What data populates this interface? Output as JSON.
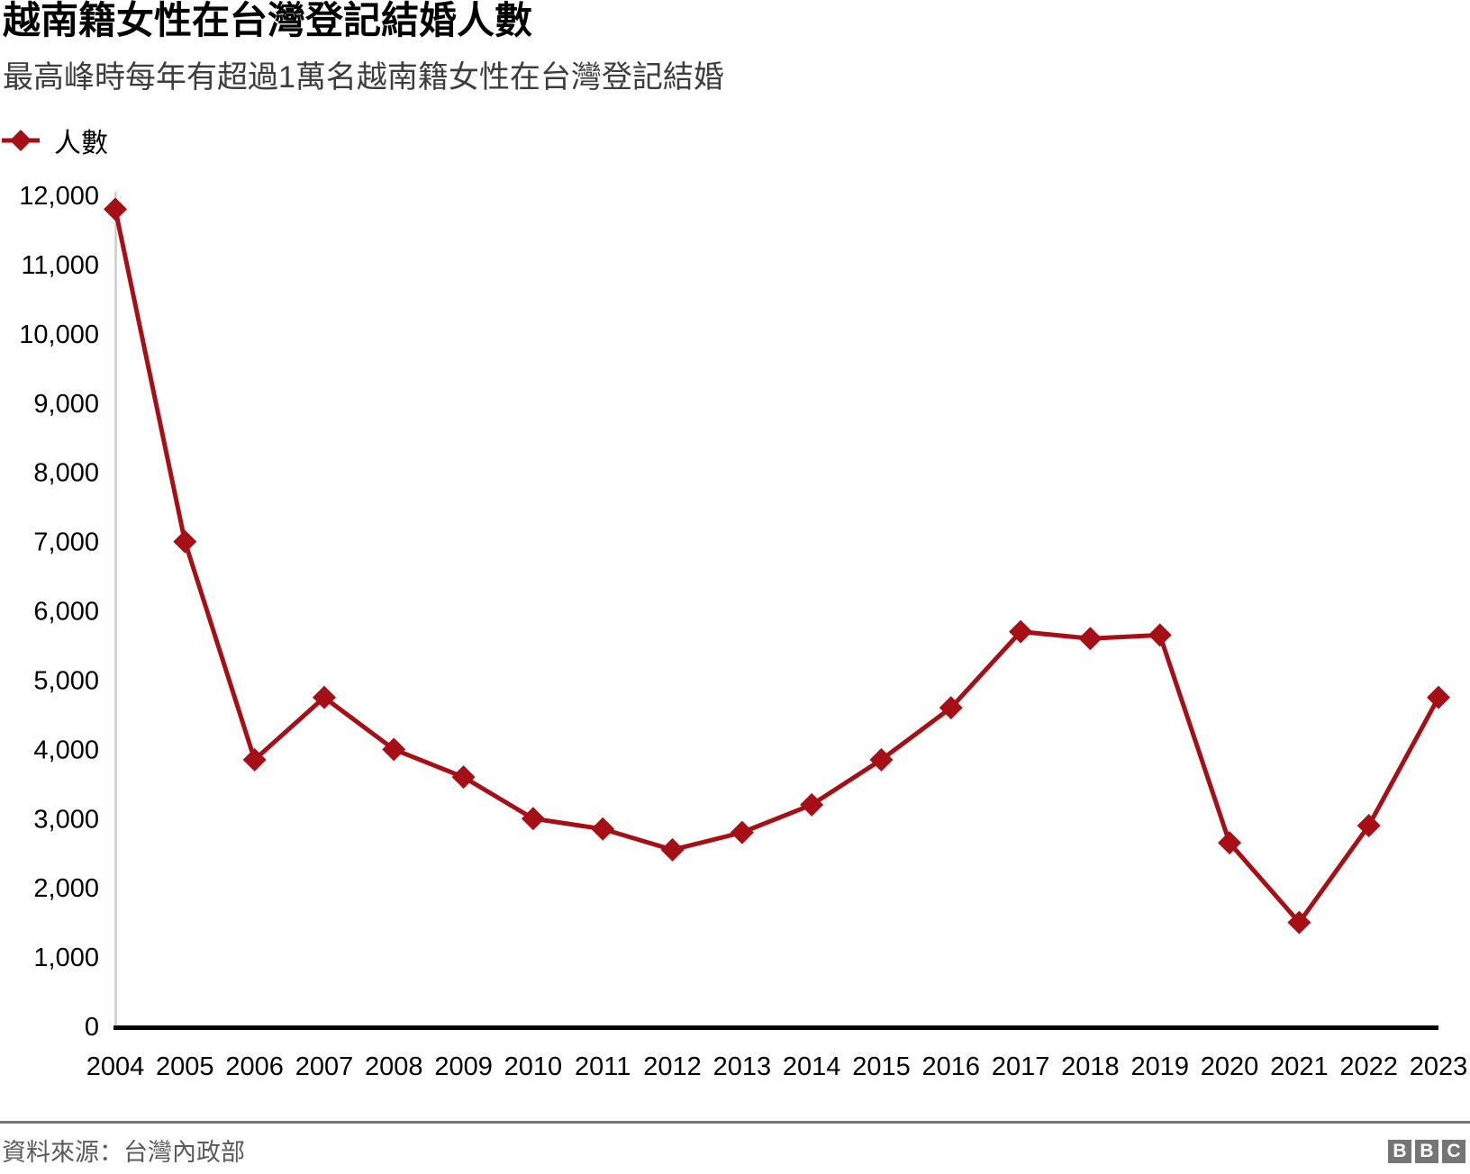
{
  "header": {
    "title": "越南籍女性在台灣登記結婚人數",
    "subtitle": "最高峰時每年有超過1萬名越南籍女性在台灣登記結婚"
  },
  "legend": {
    "label": "人數",
    "marker": "diamond-icon"
  },
  "chart_data": {
    "type": "line",
    "title": "越南籍女性在台灣登記結婚人數",
    "subtitle": "最高峰時每年有超過1萬名越南籍女性在台灣登記結婚",
    "categories": [
      "2004",
      "2005",
      "2006",
      "2007",
      "2008",
      "2009",
      "2010",
      "2011",
      "2012",
      "2013",
      "2014",
      "2015",
      "2016",
      "2017",
      "2018",
      "2019",
      "2020",
      "2021",
      "2022",
      "2023"
    ],
    "series": [
      {
        "name": "人數",
        "marker": "diamond",
        "values": [
          11800,
          7000,
          3850,
          4750,
          4000,
          3600,
          3000,
          2850,
          2550,
          2800,
          3200,
          3850,
          4600,
          5700,
          5600,
          5650,
          2650,
          1500,
          2900,
          4750
        ]
      }
    ],
    "xlabel": "",
    "ylabel": "",
    "ylim": [
      0,
      12000
    ],
    "yticks": [
      0,
      1000,
      2000,
      3000,
      4000,
      5000,
      6000,
      7000,
      8000,
      9000,
      10000,
      11000,
      12000
    ],
    "ytick_labels": [
      "0",
      "1,000",
      "2,000",
      "3,000",
      "4,000",
      "5,000",
      "6,000",
      "7,000",
      "8,000",
      "9,000",
      "10,000",
      "11,000",
      "12,000"
    ],
    "grid": false,
    "legend_position": "top-left"
  },
  "footer": {
    "source": "資料來源：台灣內政部",
    "logo_letters": [
      "B",
      "B",
      "C"
    ]
  },
  "colors": {
    "line": "#a50f15",
    "y_axis_line": "#cccccc",
    "baseline": "#000000",
    "tick_text": "#000000",
    "subtitle_text": "#3d3d3d",
    "footer_text": "#5a5a5a",
    "rule": "#767676",
    "logo_bg": "#757575"
  }
}
